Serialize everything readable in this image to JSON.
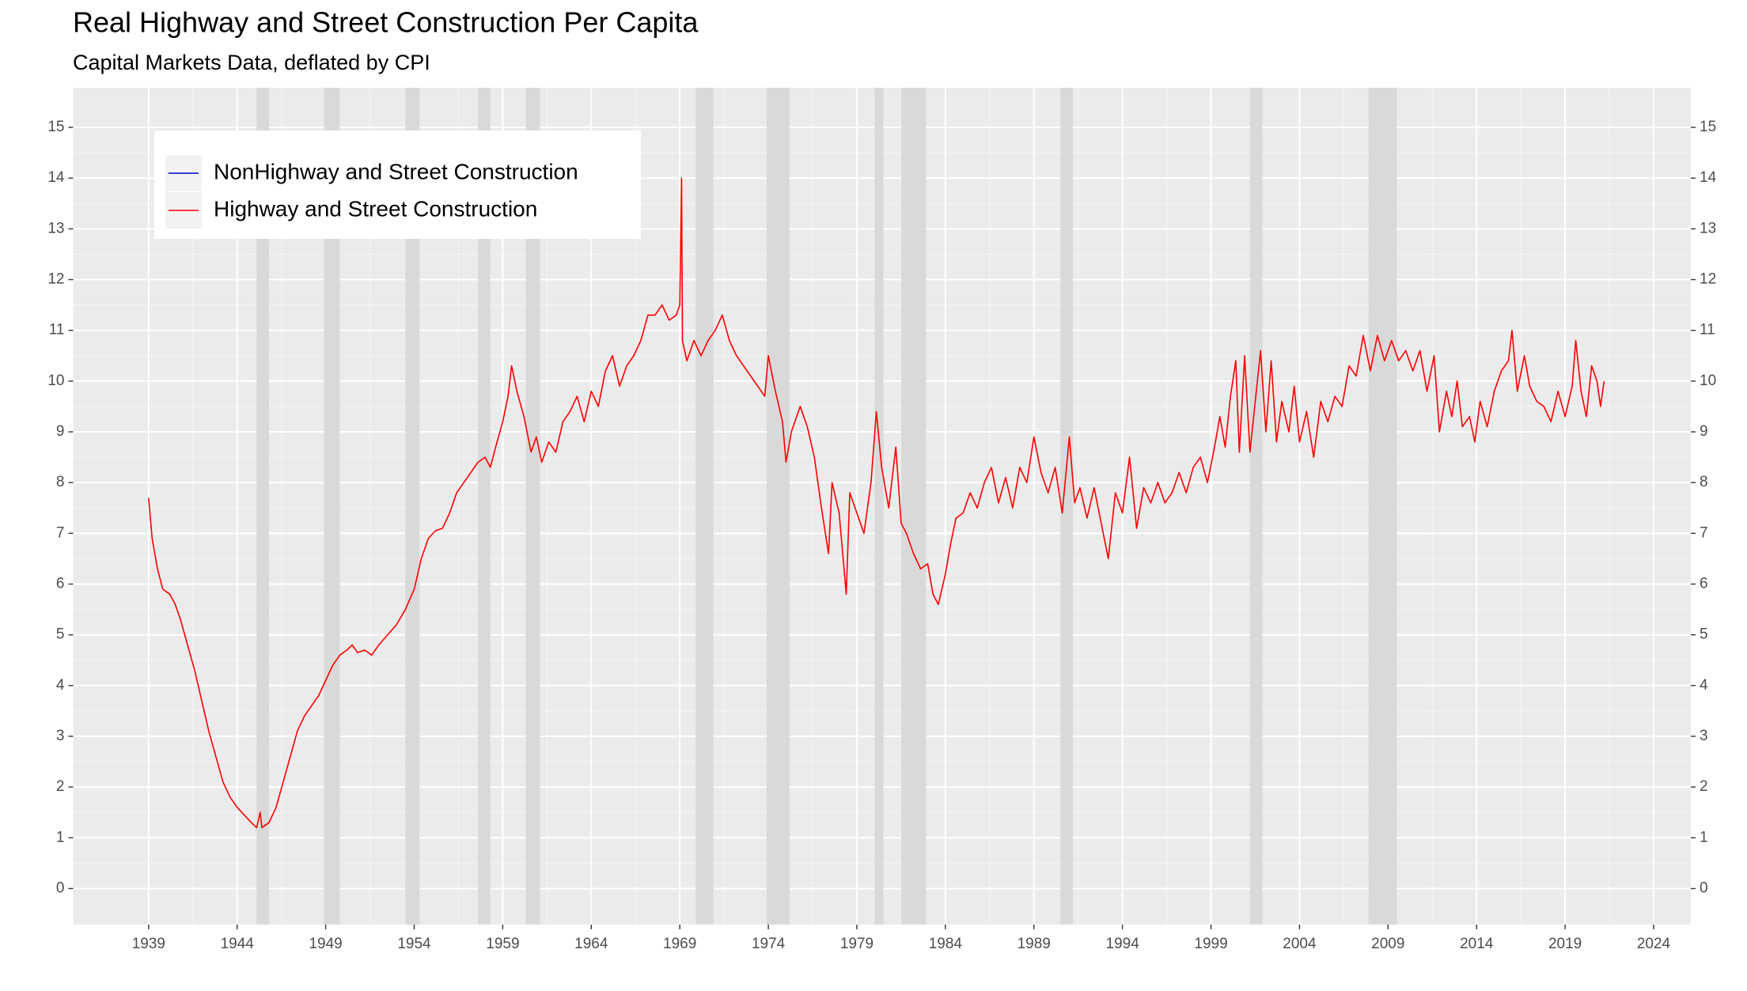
{
  "chart_data": {
    "type": "line",
    "title": "Real Highway and Street Construction Per Capita",
    "subtitle": "Capital Markets Data, deflated by CPI",
    "xlim": [
      1934.74,
      2026.1
    ],
    "ylim": [
      -0.71,
      15.78
    ],
    "xticks": [
      1939,
      1944,
      1949,
      1954,
      1959,
      1964,
      1969,
      1974,
      1979,
      1984,
      1989,
      1994,
      1999,
      2004,
      2009,
      2014,
      2019,
      2024
    ],
    "yticks": [
      0,
      1,
      2,
      3,
      4,
      5,
      6,
      7,
      8,
      9,
      10,
      11,
      12,
      13,
      14,
      15
    ],
    "grid": true,
    "legend": "top-left",
    "secondary_y_labels": true,
    "recessions": [
      [
        1945.1,
        1945.8
      ],
      [
        1948.9,
        1949.8
      ],
      [
        1953.5,
        1954.3
      ],
      [
        1957.6,
        1958.3
      ],
      [
        1960.3,
        1961.1
      ],
      [
        1969.9,
        1970.9
      ],
      [
        1973.9,
        1975.2
      ],
      [
        1980.0,
        1980.5
      ],
      [
        1981.5,
        1982.9
      ],
      [
        1990.5,
        1991.2
      ],
      [
        2001.2,
        2001.9
      ],
      [
        2007.9,
        2009.5
      ]
    ],
    "recession_color": "#d9d9d9",
    "series": [
      {
        "name": "NonHighway and Street Construction",
        "color": "#0000cc",
        "x": [],
        "values": []
      },
      {
        "name": "Highway and Street Construction",
        "color": "#ff0000",
        "x": [
          1939.0,
          1939.2,
          1939.5,
          1939.8,
          1940.2,
          1940.5,
          1940.8,
          1941.2,
          1941.6,
          1942.0,
          1942.4,
          1942.8,
          1943.2,
          1943.6,
          1944.0,
          1944.4,
          1944.8,
          1945.1,
          1945.3,
          1945.4,
          1945.8,
          1946.2,
          1946.6,
          1947.0,
          1947.4,
          1947.8,
          1948.2,
          1948.6,
          1949.0,
          1949.4,
          1949.8,
          1950.2,
          1950.5,
          1950.8,
          1951.2,
          1951.6,
          1952.0,
          1952.5,
          1953.0,
          1953.5,
          1954.0,
          1954.4,
          1954.8,
          1955.2,
          1955.6,
          1956.0,
          1956.4,
          1956.8,
          1957.2,
          1957.6,
          1958.0,
          1958.3,
          1958.6,
          1959.0,
          1959.3,
          1959.5,
          1959.8,
          1960.2,
          1960.6,
          1960.9,
          1961.2,
          1961.6,
          1962.0,
          1962.4,
          1962.8,
          1963.2,
          1963.6,
          1964.0,
          1964.4,
          1964.8,
          1965.2,
          1965.6,
          1966.0,
          1966.4,
          1966.8,
          1967.2,
          1967.6,
          1968.0,
          1968.4,
          1968.8,
          1969.0,
          1969.1,
          1969.15,
          1969.4,
          1969.8,
          1970.2,
          1970.6,
          1971.0,
          1971.4,
          1971.8,
          1972.2,
          1972.6,
          1973.0,
          1973.4,
          1973.8,
          1974.0,
          1974.4,
          1974.8,
          1975.0,
          1975.3,
          1975.8,
          1976.2,
          1976.6,
          1977.0,
          1977.4,
          1977.6,
          1978.0,
          1978.2,
          1978.4,
          1978.6,
          1979.0,
          1979.4,
          1979.8,
          1980.1,
          1980.4,
          1980.8,
          1981.2,
          1981.5,
          1981.8,
          1982.2,
          1982.6,
          1983.0,
          1983.3,
          1983.6,
          1984.0,
          1984.3,
          1984.6,
          1985.0,
          1985.4,
          1985.8,
          1986.2,
          1986.6,
          1987.0,
          1987.4,
          1987.8,
          1988.2,
          1988.6,
          1989.0,
          1989.4,
          1989.8,
          1990.2,
          1990.6,
          1991.0,
          1991.3,
          1991.6,
          1992.0,
          1992.4,
          1992.8,
          1993.2,
          1993.6,
          1994.0,
          1994.4,
          1994.8,
          1995.2,
          1995.6,
          1996.0,
          1996.4,
          1996.8,
          1997.2,
          1997.6,
          1998.0,
          1998.4,
          1998.8,
          1999.2,
          1999.5,
          1999.8,
          2000.1,
          2000.4,
          2000.6,
          2000.9,
          2001.2,
          2001.5,
          2001.8,
          2002.1,
          2002.4,
          2002.7,
          2003.0,
          2003.4,
          2003.7,
          2004.0,
          2004.4,
          2004.8,
          2005.2,
          2005.6,
          2006.0,
          2006.4,
          2006.8,
          2007.2,
          2007.6,
          2008.0,
          2008.4,
          2008.8,
          2009.2,
          2009.6,
          2010.0,
          2010.4,
          2010.8,
          2011.2,
          2011.6,
          2011.9,
          2012.3,
          2012.6,
          2012.9,
          2013.2,
          2013.6,
          2013.9,
          2014.2,
          2014.6,
          2015.0,
          2015.4,
          2015.8,
          2016.0,
          2016.3,
          2016.7,
          2017.0,
          2017.4,
          2017.8,
          2018.2,
          2018.6,
          2019.0,
          2019.4,
          2019.6,
          2019.9,
          2020.2,
          2020.5,
          2020.8,
          2021.0,
          2021.2
        ],
        "values": [
          7.7,
          6.9,
          6.3,
          5.9,
          5.8,
          5.6,
          5.3,
          4.8,
          4.3,
          3.7,
          3.1,
          2.6,
          2.1,
          1.8,
          1.6,
          1.45,
          1.3,
          1.2,
          1.5,
          1.2,
          1.3,
          1.6,
          2.1,
          2.6,
          3.1,
          3.4,
          3.6,
          3.8,
          4.1,
          4.4,
          4.6,
          4.7,
          4.8,
          4.65,
          4.7,
          4.6,
          4.8,
          5.0,
          5.2,
          5.5,
          5.9,
          6.5,
          6.9,
          7.05,
          7.1,
          7.4,
          7.8,
          8.0,
          8.2,
          8.4,
          8.5,
          8.3,
          8.7,
          9.2,
          9.7,
          10.3,
          9.8,
          9.3,
          8.6,
          8.9,
          8.4,
          8.8,
          8.6,
          9.2,
          9.4,
          9.7,
          9.2,
          9.8,
          9.5,
          10.2,
          10.5,
          9.9,
          10.3,
          10.5,
          10.8,
          11.3,
          11.3,
          11.5,
          11.2,
          11.3,
          11.5,
          14.0,
          10.8,
          10.4,
          10.8,
          10.5,
          10.8,
          11.0,
          11.3,
          10.8,
          10.5,
          10.3,
          10.1,
          9.9,
          9.7,
          10.5,
          9.8,
          9.2,
          8.4,
          9.0,
          9.5,
          9.1,
          8.5,
          7.5,
          6.6,
          8.0,
          7.4,
          6.6,
          5.8,
          7.8,
          7.4,
          7.0,
          8.0,
          9.4,
          8.3,
          7.5,
          8.7,
          7.2,
          7.0,
          6.6,
          6.3,
          6.4,
          5.8,
          5.6,
          6.2,
          6.8,
          7.3,
          7.4,
          7.8,
          7.5,
          8.0,
          8.3,
          7.6,
          8.1,
          7.5,
          8.3,
          8.0,
          8.9,
          8.2,
          7.8,
          8.3,
          7.4,
          8.9,
          7.6,
          7.9,
          7.3,
          7.9,
          7.2,
          6.5,
          7.8,
          7.4,
          8.5,
          7.1,
          7.9,
          7.6,
          8.0,
          7.6,
          7.8,
          8.2,
          7.8,
          8.3,
          8.5,
          8.0,
          8.7,
          9.3,
          8.7,
          9.7,
          10.4,
          8.6,
          10.5,
          8.6,
          9.6,
          10.6,
          9.0,
          10.4,
          8.8,
          9.6,
          9.0,
          9.9,
          8.8,
          9.4,
          8.5,
          9.6,
          9.2,
          9.7,
          9.5,
          10.3,
          10.1,
          10.9,
          10.2,
          10.9,
          10.4,
          10.8,
          10.4,
          10.6,
          10.2,
          10.6,
          9.8,
          10.5,
          9.0,
          9.8,
          9.3,
          10.0,
          9.1,
          9.3,
          8.8,
          9.6,
          9.1,
          9.8,
          10.2,
          10.4,
          11.0,
          9.8,
          10.5,
          9.9,
          9.6,
          9.5,
          9.2,
          9.8,
          9.3,
          9.9,
          10.8,
          9.8,
          9.3,
          10.3,
          10.0,
          9.5,
          10.0
        ]
      }
    ]
  }
}
